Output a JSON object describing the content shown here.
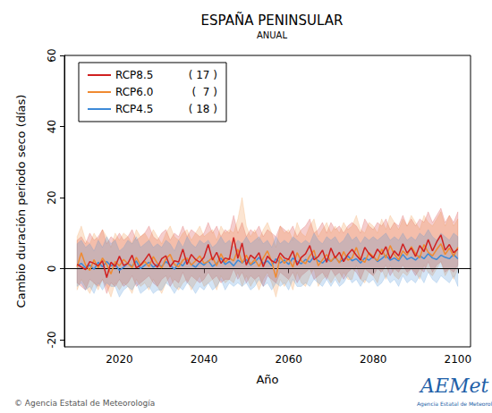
{
  "chart_data": {
    "type": "line",
    "title": "ESPAÑA PENINSULAR",
    "subtitle": "ANUAL",
    "x_label": "Año",
    "y_label": "Cambio duración periodo seco (días)",
    "footer": "© Agencia Estatal de Meteorología",
    "logo_text": "AEMet",
    "logo_subtext": "Agencia Estatal de Meteorología",
    "xlim": [
      2007,
      2103
    ],
    "xticks": [
      2020,
      2040,
      2060,
      2080,
      2100
    ],
    "ylim": [
      -22,
      60
    ],
    "yticks": [
      -20,
      0,
      20,
      40,
      60
    ],
    "hline": 0,
    "grid": false,
    "legend": "upper left",
    "x": [
      2010,
      2011,
      2012,
      2013,
      2014,
      2015,
      2016,
      2017,
      2018,
      2019,
      2020,
      2021,
      2022,
      2023,
      2024,
      2025,
      2026,
      2027,
      2028,
      2029,
      2030,
      2031,
      2032,
      2033,
      2034,
      2035,
      2036,
      2037,
      2038,
      2039,
      2040,
      2041,
      2042,
      2043,
      2044,
      2045,
      2046,
      2047,
      2048,
      2049,
      2050,
      2051,
      2052,
      2053,
      2054,
      2055,
      2056,
      2057,
      2058,
      2059,
      2060,
      2061,
      2062,
      2063,
      2064,
      2065,
      2066,
      2067,
      2068,
      2069,
      2070,
      2071,
      2072,
      2073,
      2074,
      2075,
      2076,
      2077,
      2078,
      2079,
      2080,
      2081,
      2082,
      2083,
      2084,
      2085,
      2086,
      2087,
      2088,
      2089,
      2090,
      2091,
      2092,
      2093,
      2094,
      2095,
      2096,
      2097,
      2098,
      2099,
      2100
    ],
    "series": [
      {
        "name": "RCP8.5",
        "count_label": "( 17 )",
        "color": "#d02020",
        "values": [
          1.2,
          0.5,
          -0.3,
          2.0,
          1.5,
          0.8,
          2.2,
          -2.5,
          1.8,
          0.6,
          3.5,
          0.9,
          1.5,
          3.8,
          0.2,
          1.0,
          2.5,
          4.2,
          1.6,
          0.4,
          2.8,
          3.6,
          0.5,
          2.2,
          1.9,
          5.5,
          1.2,
          4.0,
          2.6,
          1.8,
          3.2,
          6.8,
          2.4,
          4.6,
          1.5,
          3.0,
          2.6,
          8.8,
          2.9,
          7.2,
          1.0,
          3.8,
          2.8,
          4.5,
          0.5,
          3.5,
          2.2,
          1.6,
          4.4,
          3.0,
          2.6,
          5.0,
          1.0,
          3.2,
          4.2,
          6.5,
          2.5,
          3.4,
          5.2,
          1.8,
          5.8,
          3.0,
          4.6,
          2.0,
          4.0,
          5.4,
          3.8,
          2.4,
          6.0,
          4.2,
          3.0,
          5.5,
          4.0,
          6.2,
          2.8,
          5.0,
          3.6,
          7.0,
          4.4,
          5.8,
          3.4,
          6.5,
          4.8,
          8.2,
          5.0,
          7.5,
          9.5,
          5.2,
          6.8,
          4.5,
          5.5
        ],
        "upper": [
          8,
          9,
          7,
          10,
          8,
          9,
          11,
          7,
          9,
          8,
          10,
          8,
          9,
          11,
          8,
          9,
          10,
          12,
          9,
          8,
          10,
          11,
          8,
          10,
          9,
          12,
          9,
          11,
          10,
          9,
          10,
          13,
          10,
          12,
          9,
          11,
          10,
          15,
          10,
          13,
          9,
          11,
          10,
          12,
          9,
          11,
          10,
          9,
          12,
          11,
          10,
          12,
          9,
          11,
          12,
          14,
          10,
          11,
          13,
          10,
          13,
          11,
          12,
          10,
          12,
          13,
          12,
          10,
          14,
          12,
          11,
          13,
          12,
          14,
          11,
          13,
          12,
          15,
          12,
          14,
          12,
          14,
          13,
          16,
          13,
          15,
          17,
          13,
          15,
          13,
          16
        ],
        "lower": [
          -4,
          -5,
          -6,
          -3,
          -4,
          -5,
          -3,
          -7,
          -4,
          -5,
          -3,
          -5,
          -4,
          -2,
          -5,
          -4,
          -3,
          -2,
          -4,
          -5,
          -3,
          -2,
          -5,
          -3,
          -4,
          -1,
          -4,
          -2,
          -3,
          -4,
          -3,
          -1,
          -3,
          -2,
          -4,
          -3,
          -3,
          0,
          -3,
          -1,
          -4,
          -2,
          -3,
          -2,
          -5,
          -2,
          -3,
          -4,
          -1,
          -2,
          -3,
          -1,
          -4,
          -2,
          -1,
          0,
          -3,
          -2,
          -1,
          -3,
          0,
          -2,
          -1,
          -3,
          -1,
          0,
          -1,
          -3,
          0,
          -1,
          -2,
          0,
          -1,
          1,
          -2,
          0,
          -1,
          1,
          -1,
          0,
          -2,
          0,
          -1,
          2,
          -1,
          1,
          2,
          -1,
          0,
          -1,
          1
        ]
      },
      {
        "name": "RCP6.0",
        "count_label": "(  7 )",
        "color": "#f08a30",
        "values": [
          0.5,
          4.5,
          1.0,
          -0.5,
          2.5,
          0.2,
          3.0,
          1.2,
          -1.5,
          2.0,
          0.8,
          2.6,
          1.4,
          0.3,
          3.2,
          1.0,
          2.0,
          0.6,
          3.4,
          1.5,
          0.2,
          2.8,
          4.0,
          1.2,
          0.5,
          2.4,
          3.0,
          1.0,
          2.2,
          3.6,
          1.5,
          2.0,
          3.2,
          0.8,
          4.2,
          1.8,
          3.0,
          2.2,
          5.5,
          1.6,
          3.8,
          1.2,
          2.6,
          0.6,
          3.0,
          5.0,
          2.0,
          -2.5,
          3.4,
          1.5,
          2.8,
          0.4,
          4.5,
          2.2,
          1.4,
          3.6,
          5.2,
          0.8,
          2.5,
          4.0,
          2.0,
          3.5,
          1.6,
          4.8,
          2.4,
          3.0,
          6.0,
          2.6,
          1.8,
          4.5,
          3.4,
          2.2,
          5.5,
          3.0,
          6.5,
          4.0,
          2.5,
          5.0,
          3.8,
          6.2,
          4.2,
          3.0,
          6.8,
          4.6,
          3.6,
          5.4,
          7.0,
          4.0,
          5.8,
          3.5,
          6.0
        ],
        "upper": [
          9,
          12,
          8,
          7,
          10,
          8,
          11,
          9,
          6,
          10,
          8,
          10,
          9,
          7,
          11,
          9,
          10,
          8,
          11,
          9,
          7,
          10,
          12,
          9,
          8,
          10,
          11,
          8,
          10,
          12,
          9,
          10,
          11,
          8,
          12,
          10,
          11,
          10,
          14,
          20,
          12,
          9,
          11,
          8,
          11,
          13,
          10,
          6,
          12,
          10,
          11,
          8,
          13,
          10,
          9,
          12,
          14,
          9,
          11,
          13,
          10,
          12,
          10,
          13,
          11,
          12,
          15,
          11,
          10,
          13,
          12,
          10,
          14,
          11,
          15,
          13,
          11,
          14,
          12,
          15,
          13,
          11,
          15,
          13,
          12,
          14,
          16,
          12,
          15,
          12,
          14
        ],
        "lower": [
          -6,
          -3,
          -5,
          -7,
          -4,
          -6,
          -3,
          -5,
          -8,
          -4,
          -6,
          -4,
          -5,
          -7,
          -3,
          -5,
          -4,
          -6,
          -3,
          -5,
          -7,
          -4,
          -2,
          -5,
          -6,
          -4,
          -3,
          -6,
          -4,
          -2,
          -5,
          -4,
          -3,
          -6,
          -2,
          -4,
          -3,
          -4,
          -1,
          -5,
          -2,
          -5,
          -3,
          -6,
          -3,
          -1,
          -4,
          -8,
          -3,
          -5,
          -3,
          -6,
          -1,
          -4,
          -5,
          -2,
          0,
          -5,
          -3,
          -2,
          -4,
          -2,
          -4,
          -1,
          -3,
          -3,
          1,
          -3,
          -4,
          -1,
          -2,
          -4,
          0,
          -3,
          1,
          -2,
          -3,
          -1,
          -2,
          0,
          -1,
          -3,
          1,
          -1,
          -2,
          0,
          2,
          -2,
          0,
          -3,
          0
        ]
      },
      {
        "name": "RCP4.5",
        "count_label": "( 18 )",
        "color": "#3d8ad8",
        "values": [
          0.8,
          1.5,
          0.2,
          1.0,
          -0.2,
          1.8,
          0.5,
          2.0,
          0.8,
          1.2,
          -0.5,
          0.4,
          1.5,
          0.6,
          2.2,
          0.0,
          1.0,
          1.8,
          0.4,
          1.2,
          0.6,
          2.0,
          1.0,
          -0.2,
          1.6,
          0.8,
          2.6,
          1.2,
          0.4,
          1.8,
          1.0,
          2.2,
          0.6,
          1.5,
          3.0,
          1.2,
          2.0,
          0.8,
          2.4,
          1.6,
          2.6,
          1.0,
          1.8,
          3.2,
          1.4,
          2.2,
          0.8,
          2.8,
          1.6,
          2.4,
          1.2,
          3.0,
          2.0,
          1.4,
          2.6,
          1.8,
          3.4,
          2.2,
          1.6,
          2.8,
          2.0,
          3.2,
          1.8,
          2.6,
          3.6,
          2.2,
          2.8,
          1.6,
          3.0,
          2.4,
          3.4,
          2.0,
          2.8,
          3.8,
          2.4,
          3.0,
          2.2,
          4.0,
          2.6,
          3.2,
          2.4,
          3.6,
          2.8,
          4.2,
          3.0,
          2.6,
          3.8,
          3.2,
          2.8,
          4.0,
          2.8
        ],
        "upper": [
          7,
          8,
          6,
          7,
          5,
          8,
          6,
          9,
          7,
          8,
          5,
          6,
          8,
          7,
          9,
          6,
          7,
          8,
          6,
          7,
          6,
          8,
          7,
          5,
          8,
          6,
          9,
          7,
          6,
          8,
          7,
          8,
          6,
          7,
          9,
          7,
          8,
          6,
          8,
          7,
          9,
          7,
          8,
          9,
          7,
          8,
          6,
          9,
          7,
          8,
          7,
          9,
          8,
          7,
          8,
          7,
          10,
          8,
          7,
          9,
          8,
          9,
          7,
          8,
          10,
          8,
          9,
          7,
          9,
          8,
          9,
          8,
          9,
          10,
          8,
          9,
          8,
          10,
          8,
          9,
          8,
          10,
          9,
          11,
          9,
          8,
          10,
          9,
          8,
          10,
          9
        ],
        "lower": [
          -5,
          -4,
          -6,
          -5,
          -7,
          -4,
          -6,
          -4,
          -5,
          -5,
          -8,
          -6,
          -5,
          -6,
          -4,
          -7,
          -6,
          -5,
          -7,
          -6,
          -6,
          -4,
          -5,
          -7,
          -5,
          -6,
          -4,
          -5,
          -7,
          -5,
          -6,
          -4,
          -6,
          -5,
          -3,
          -6,
          -4,
          -5,
          -4,
          -5,
          -4,
          -6,
          -5,
          -3,
          -5,
          -4,
          -6,
          -4,
          -5,
          -4,
          -6,
          -3,
          -5,
          -5,
          -4,
          -5,
          -3,
          -4,
          -5,
          -3,
          -5,
          -3,
          -5,
          -4,
          -2,
          -4,
          -3,
          -5,
          -3,
          -4,
          -3,
          -5,
          -4,
          -2,
          -4,
          -3,
          -5,
          -2,
          -4,
          -3,
          -4,
          -2,
          -4,
          -1,
          -3,
          -4,
          -2,
          -3,
          -4,
          -2,
          -5
        ]
      }
    ]
  }
}
